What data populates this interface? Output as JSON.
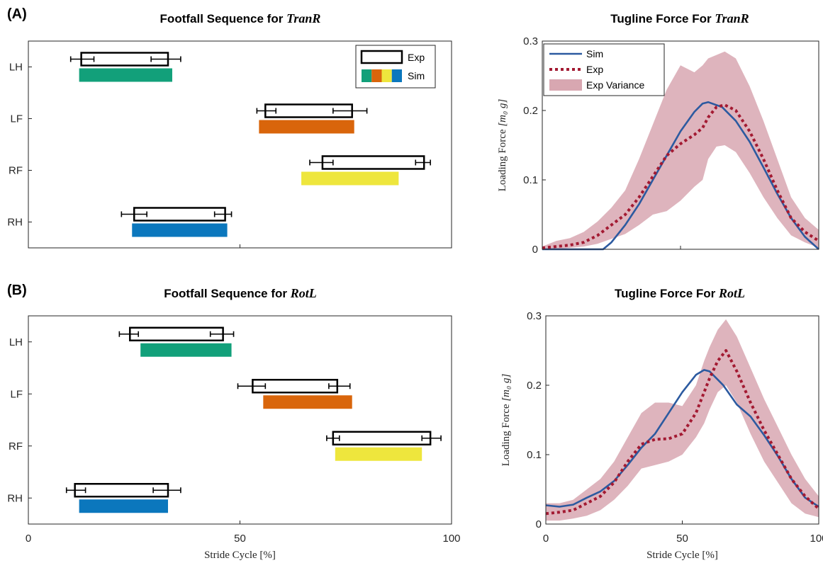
{
  "panel_labels": [
    "(A)",
    "(B)"
  ],
  "colors": {
    "LH": "#12a07a",
    "LF": "#d9650b",
    "RF": "#eee63d",
    "RH": "#0b77bd",
    "sim_line": "#2c5aa0",
    "exp_line": "#a31a32",
    "exp_variance": "#d8a7b1"
  },
  "chart_data": [
    {
      "id": "footfall_tranr",
      "type": "gantt",
      "title": "Footfall Sequence for ",
      "title_italic": "TranR",
      "xlim": [
        0,
        100
      ],
      "xticks": [
        0,
        50,
        100
      ],
      "show_xtick_labels": false,
      "xlabel": "",
      "categories": [
        "LH",
        "LF",
        "RF",
        "RH"
      ],
      "legend": [
        "Exp",
        "Sim"
      ],
      "exp": [
        {
          "start": 12.5,
          "end": 33,
          "start_err": [
            10,
            15.5
          ],
          "end_err": [
            29,
            36
          ]
        },
        {
          "start": 56,
          "end": 76.5,
          "start_err": [
            54,
            58.5
          ],
          "end_err": [
            72,
            80
          ]
        },
        {
          "start": 69.5,
          "end": 93.5,
          "start_err": [
            66.5,
            72
          ],
          "end_err": [
            91.5,
            95
          ]
        },
        {
          "start": 25,
          "end": 46.5,
          "start_err": [
            22,
            28
          ],
          "end_err": [
            44,
            48
          ]
        }
      ],
      "sim": [
        {
          "start": 12,
          "end": 34
        },
        {
          "start": 54.5,
          "end": 77
        },
        {
          "start": 64.5,
          "end": 87.5
        },
        {
          "start": 24.5,
          "end": 47
        }
      ]
    },
    {
      "id": "tugline_tranr",
      "type": "line",
      "title": "Tugline  Force  For ",
      "title_italic": "TranR",
      "xlim": [
        0,
        100
      ],
      "ylim": [
        0,
        0.3
      ],
      "xticks": [
        0,
        50,
        100
      ],
      "yticks": [
        0,
        0.1,
        0.2,
        0.3
      ],
      "ytick_labels": [
        "0",
        "0.1",
        "0.2",
        "0.3"
      ],
      "show_xtick_labels": false,
      "xlabel": "",
      "ylabel": "Loading Force  ",
      "ylabel_unit": "[m₀ g]",
      "legend": [
        "Sim",
        "Exp",
        "Exp Variance"
      ],
      "series": [
        {
          "name": "Sim",
          "x": [
            0,
            10,
            20,
            22,
            25,
            30,
            35,
            40,
            45,
            50,
            55,
            58,
            60,
            65,
            70,
            75,
            80,
            85,
            90,
            95,
            100
          ],
          "y": [
            0,
            0,
            0,
            0,
            0.01,
            0.035,
            0.065,
            0.1,
            0.135,
            0.17,
            0.198,
            0.21,
            0.212,
            0.205,
            0.185,
            0.155,
            0.118,
            0.08,
            0.045,
            0.018,
            0
          ]
        },
        {
          "name": "Exp",
          "x": [
            0,
            5,
            10,
            15,
            20,
            25,
            30,
            35,
            40,
            45,
            50,
            55,
            58,
            60,
            63,
            66,
            70,
            75,
            80,
            85,
            90,
            95,
            100
          ],
          "y": [
            0.002,
            0.004,
            0.006,
            0.01,
            0.02,
            0.035,
            0.05,
            0.075,
            0.105,
            0.135,
            0.152,
            0.165,
            0.175,
            0.19,
            0.205,
            0.208,
            0.2,
            0.17,
            0.13,
            0.085,
            0.045,
            0.025,
            0.012
          ]
        }
      ],
      "band": {
        "name": "Exp Variance",
        "x": [
          0,
          5,
          10,
          15,
          20,
          25,
          30,
          35,
          40,
          45,
          50,
          55,
          58,
          60,
          63,
          66,
          70,
          75,
          80,
          85,
          90,
          95,
          100
        ],
        "lower": [
          0,
          0,
          0.002,
          0.004,
          0.008,
          0.015,
          0.022,
          0.035,
          0.05,
          0.055,
          0.07,
          0.09,
          0.1,
          0.13,
          0.148,
          0.15,
          0.14,
          0.11,
          0.075,
          0.045,
          0.02,
          0.01,
          0.002
        ],
        "upper": [
          0.004,
          0.012,
          0.016,
          0.025,
          0.04,
          0.06,
          0.085,
          0.13,
          0.18,
          0.23,
          0.265,
          0.255,
          0.265,
          0.275,
          0.28,
          0.285,
          0.275,
          0.235,
          0.185,
          0.13,
          0.075,
          0.045,
          0.028
        ]
      }
    },
    {
      "id": "footfall_rotl",
      "type": "gantt",
      "title": "Footfall Sequence for ",
      "title_italic": "RotL",
      "xlim": [
        0,
        100
      ],
      "xticks": [
        0,
        50,
        100
      ],
      "xtick_labels": [
        "0",
        "50",
        "100"
      ],
      "show_xtick_labels": true,
      "xlabel": "Stride Cycle [%]",
      "categories": [
        "LH",
        "LF",
        "RF",
        "RH"
      ],
      "exp": [
        {
          "start": 24,
          "end": 46,
          "start_err": [
            21.5,
            26
          ],
          "end_err": [
            43,
            48.5
          ]
        },
        {
          "start": 53,
          "end": 73,
          "start_err": [
            49.5,
            56
          ],
          "end_err": [
            71,
            76
          ]
        },
        {
          "start": 72,
          "end": 95,
          "start_err": [
            70.5,
            73.5
          ],
          "end_err": [
            93,
            97.5
          ]
        },
        {
          "start": 11,
          "end": 33,
          "start_err": [
            9,
            13.5
          ],
          "end_err": [
            29.5,
            36
          ]
        }
      ],
      "sim": [
        {
          "start": 26.5,
          "end": 48
        },
        {
          "start": 55.5,
          "end": 76.5
        },
        {
          "start": 72.5,
          "end": 93
        },
        {
          "start": 12,
          "end": 33
        }
      ]
    },
    {
      "id": "tugline_rotl",
      "type": "line",
      "title": "Tugline  Force  For ",
      "title_italic": "RotL",
      "xlim": [
        0,
        100
      ],
      "ylim": [
        0,
        0.3
      ],
      "xticks": [
        0,
        50,
        100
      ],
      "xtick_labels": [
        "0",
        "50",
        "100"
      ],
      "yticks": [
        0,
        0.1,
        0.2,
        0.3
      ],
      "ytick_labels": [
        "0",
        "0.1",
        "0.2",
        "0.3"
      ],
      "show_xtick_labels": true,
      "xlabel": "Stride Cycle [%]",
      "ylabel": "Loading Force  ",
      "ylabel_unit": "[m₀ g]",
      "series": [
        {
          "name": "Sim",
          "x": [
            0,
            5,
            10,
            15,
            20,
            25,
            30,
            35,
            40,
            45,
            50,
            55,
            58,
            60,
            65,
            70,
            75,
            80,
            85,
            90,
            95,
            100
          ],
          "y": [
            0.027,
            0.025,
            0.028,
            0.038,
            0.047,
            0.062,
            0.085,
            0.11,
            0.13,
            0.16,
            0.19,
            0.215,
            0.222,
            0.22,
            0.2,
            0.172,
            0.155,
            0.128,
            0.098,
            0.065,
            0.038,
            0.025
          ]
        },
        {
          "name": "Exp",
          "x": [
            0,
            5,
            10,
            15,
            20,
            25,
            30,
            35,
            40,
            45,
            50,
            55,
            58,
            60,
            63,
            66,
            70,
            75,
            80,
            85,
            90,
            95,
            100
          ],
          "y": [
            0.015,
            0.017,
            0.02,
            0.03,
            0.04,
            0.06,
            0.09,
            0.115,
            0.122,
            0.123,
            0.13,
            0.16,
            0.19,
            0.21,
            0.235,
            0.25,
            0.22,
            0.175,
            0.135,
            0.1,
            0.065,
            0.04,
            0.022
          ]
        }
      ],
      "band": {
        "name": "Exp Variance",
        "x": [
          0,
          5,
          10,
          15,
          20,
          25,
          30,
          35,
          40,
          45,
          50,
          55,
          58,
          60,
          63,
          66,
          70,
          75,
          80,
          85,
          90,
          95,
          100
        ],
        "lower": [
          0.005,
          0.005,
          0.008,
          0.012,
          0.02,
          0.035,
          0.055,
          0.08,
          0.085,
          0.09,
          0.1,
          0.125,
          0.145,
          0.165,
          0.19,
          0.2,
          0.175,
          0.13,
          0.09,
          0.06,
          0.03,
          0.015,
          0.01
        ],
        "upper": [
          0.03,
          0.03,
          0.035,
          0.05,
          0.065,
          0.09,
          0.125,
          0.16,
          0.175,
          0.175,
          0.17,
          0.2,
          0.235,
          0.255,
          0.28,
          0.295,
          0.27,
          0.225,
          0.18,
          0.14,
          0.1,
          0.065,
          0.04
        ]
      }
    }
  ]
}
